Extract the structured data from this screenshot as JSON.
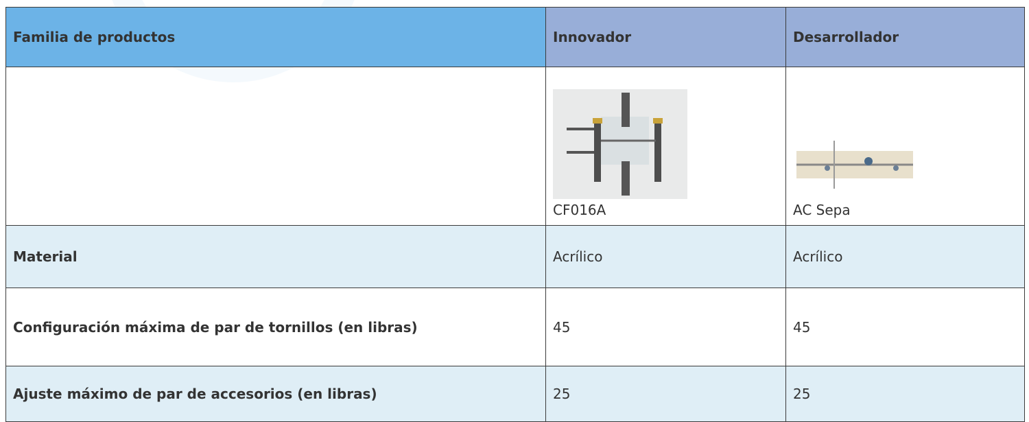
{
  "table": {
    "header": [
      "Familia de productos",
      "Innovador",
      "Desarrollador"
    ],
    "products": [
      {
        "caption": "CF016A"
      },
      {
        "caption": "AC Sepa"
      }
    ],
    "rows": [
      {
        "label": "Material",
        "values": [
          "Acrílico",
          "Acrílico"
        ]
      },
      {
        "label": "Configuración máxima de par de tornillos (en libras)",
        "values": [
          45,
          45
        ]
      },
      {
        "label": "Ajuste máximo de par de accesorios (en libras)",
        "values": [
          25,
          25
        ]
      }
    ]
  }
}
